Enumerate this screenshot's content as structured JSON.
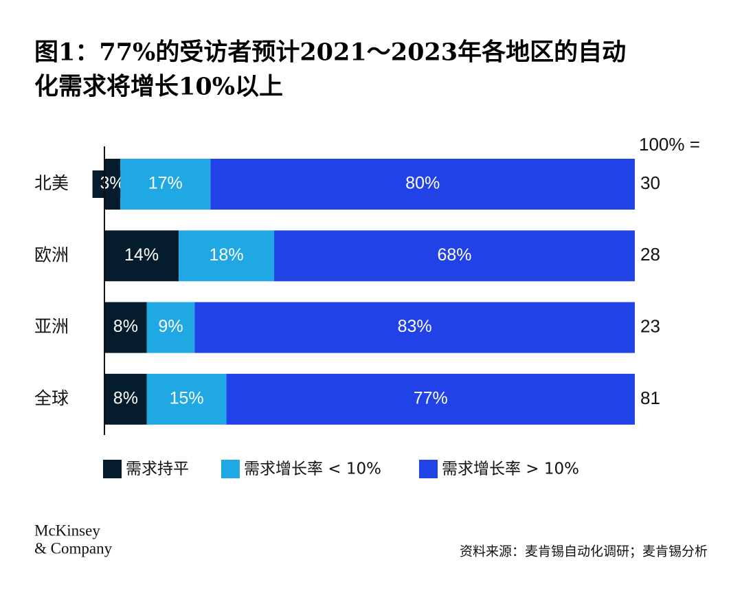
{
  "chart_data": {
    "type": "stacked-barh",
    "title": [
      "图1：77%的受访者预计2021～2023年各地区的自动",
      "化需求将增长10%以上"
    ],
    "categories": [
      "北美",
      "欧洲",
      "亚洲",
      "全球"
    ],
    "series": [
      {
        "name": "需求持平",
        "color": "#051c2c",
        "values": [
          3,
          14,
          8,
          8
        ],
        "value_labels": [
          "3%",
          "14%",
          "8%",
          "8%"
        ]
      },
      {
        "name": "需求增长率 < 10%",
        "color": "#20a8e4",
        "values": [
          17,
          18,
          9,
          15
        ],
        "value_labels": [
          "17%",
          "18%",
          "9%",
          "15%"
        ]
      },
      {
        "name": "需求增长率 > 10%",
        "color": "#2142e6",
        "values": [
          80,
          68,
          83,
          77
        ],
        "value_labels": [
          "80%",
          "68%",
          "83%",
          "77%"
        ]
      }
    ],
    "xlim": [
      0,
      100
    ],
    "totals": {
      "label": "100% =",
      "values": [
        30,
        28,
        23,
        81
      ]
    },
    "source": "资料来源：麦肯锡自动化调研；麦肯锡分析",
    "logo": [
      "McKinsey",
      "& Company"
    ]
  }
}
